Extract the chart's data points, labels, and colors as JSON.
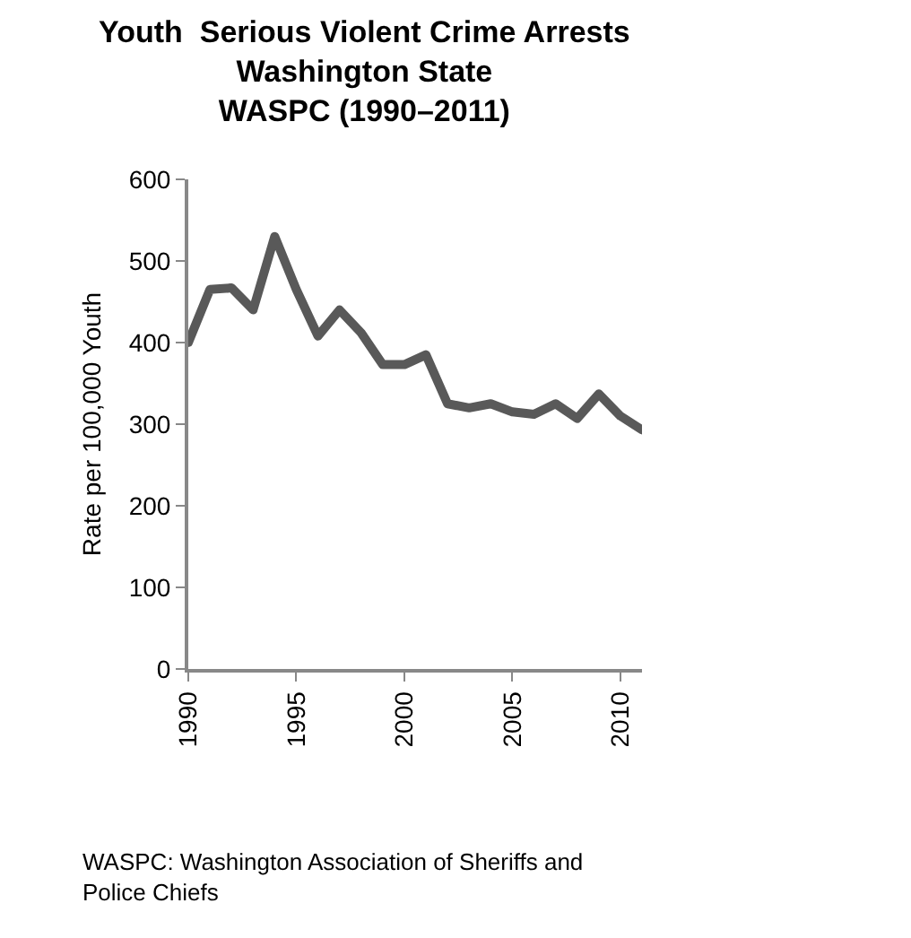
{
  "chart_data": {
    "type": "line",
    "title": "Youth  Serious Violent Crime Arrests\nWashington State\nWASPC (1990–2011)",
    "ylabel": "Rate per 100,000 Youth",
    "x": [
      1990,
      1991,
      1992,
      1993,
      1994,
      1995,
      1996,
      1997,
      1998,
      1999,
      2000,
      2001,
      2002,
      2003,
      2004,
      2005,
      2006,
      2007,
      2008,
      2009,
      2010,
      2011
    ],
    "series": [
      {
        "color": "#595959",
        "values": [
          400,
          465,
          467,
          440,
          530,
          465,
          408,
          440,
          412,
          373,
          373,
          385,
          325,
          320,
          325,
          315,
          312,
          325,
          307,
          337,
          310,
          293
        ]
      }
    ],
    "xlim": [
      1990,
      2011
    ],
    "xticks": [
      1990,
      1995,
      2000,
      2005,
      2010
    ],
    "ylim": [
      0,
      600
    ],
    "yticks": [
      0,
      100,
      200,
      300,
      400,
      500,
      600
    ],
    "grid": false,
    "marker": "none",
    "line_style": "solid",
    "annotations": [
      "WASPC: Washington Association of Sheriffs and\nPolice Chiefs"
    ]
  }
}
